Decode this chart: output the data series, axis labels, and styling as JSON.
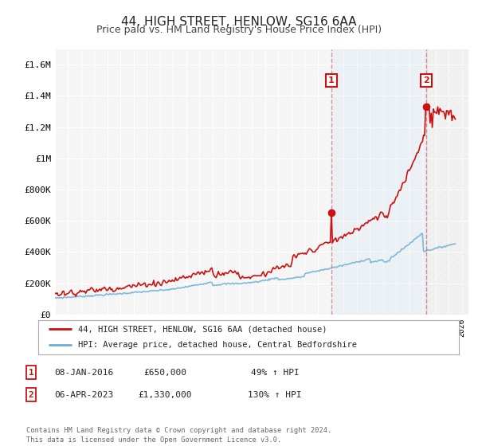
{
  "title": "44, HIGH STREET, HENLOW, SG16 6AA",
  "subtitle": "Price paid vs. HM Land Registry's House Price Index (HPI)",
  "ylim": [
    0,
    1700000
  ],
  "xlim_start": 1995,
  "xlim_end": 2026.5,
  "background_color": "#ffffff",
  "plot_bg_color": "#f5f5f5",
  "grid_color": "#ffffff",
  "sale1_date": 2016.04,
  "sale1_price": 650000,
  "sale2_date": 2023.27,
  "sale2_price": 1330000,
  "hpi_line_color": "#6baed6",
  "price_line_color": "#cc1111",
  "vline_color": "#cc1111",
  "vline_alpha": 0.45,
  "annotation_box_color": "#cc1111",
  "legend_label_price": "44, HIGH STREET, HENLOW, SG16 6AA (detached house)",
  "legend_label_hpi": "HPI: Average price, detached house, Central Bedfordshire",
  "note1_date": "08-JAN-2016",
  "note1_price": "£650,000",
  "note1_hpi": "49% ↑ HPI",
  "note2_date": "06-APR-2023",
  "note2_price": "£1,330,000",
  "note2_hpi": "130% ↑ HPI",
  "footer": "Contains HM Land Registry data © Crown copyright and database right 2024.\nThis data is licensed under the Open Government Licence v3.0.",
  "yticks": [
    0,
    200000,
    400000,
    600000,
    800000,
    1000000,
    1200000,
    1400000,
    1600000
  ],
  "ytick_labels": [
    "£0",
    "£200K",
    "£400K",
    "£600K",
    "£800K",
    "£1M",
    "£1.2M",
    "£1.4M",
    "£1.6M"
  ]
}
